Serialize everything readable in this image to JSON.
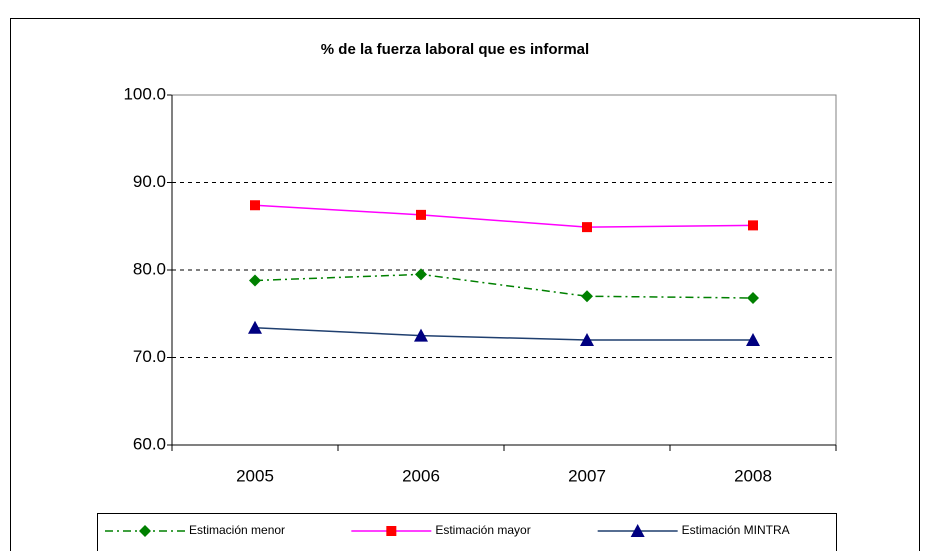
{
  "chart_data": {
    "type": "line",
    "title": "% de la fuerza laboral que es informal",
    "categories": [
      "2005",
      "2006",
      "2007",
      "2008"
    ],
    "series": [
      {
        "name": "Estimación menor",
        "color": "#008000",
        "marker_color": "#008000",
        "marker": "diamond",
        "dash": "dashdot",
        "values": [
          78.8,
          79.5,
          77.0,
          76.8
        ]
      },
      {
        "name": "Estimación mayor",
        "color": "#ff00ff",
        "marker_color": "#ff0000",
        "marker": "square",
        "dash": "solid",
        "values": [
          87.4,
          86.3,
          84.9,
          85.1
        ]
      },
      {
        "name": "Estimación MINTRA",
        "color": "#1f3f6f",
        "marker_color": "#000080",
        "marker": "triangle",
        "dash": "solid",
        "values": [
          73.4,
          72.5,
          72.0,
          72.0
        ]
      }
    ],
    "ylim": [
      60,
      100
    ],
    "yticks": [
      {
        "value": 60,
        "label": "60.0"
      },
      {
        "value": 70,
        "label": "70.0"
      },
      {
        "value": 80,
        "label": "80.0"
      },
      {
        "value": 90,
        "label": "90.0"
      },
      {
        "value": 100,
        "label": "100.0"
      }
    ],
    "grid": true,
    "legend": "bottom"
  }
}
